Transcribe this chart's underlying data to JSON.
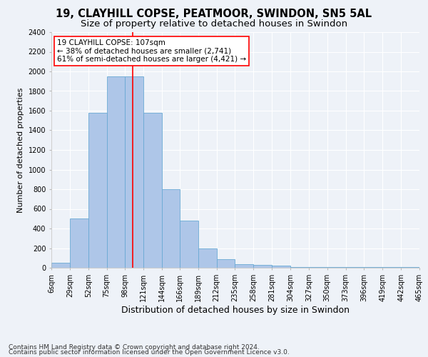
{
  "title1": "19, CLAYHILL COPSE, PEATMOOR, SWINDON, SN5 5AL",
  "title2": "Size of property relative to detached houses in Swindon",
  "xlabel": "Distribution of detached houses by size in Swindon",
  "ylabel": "Number of detached properties",
  "bin_edges": [
    6,
    29,
    52,
    75,
    98,
    121,
    144,
    166,
    189,
    212,
    235,
    258,
    281,
    304,
    327,
    350,
    373,
    396,
    419,
    442,
    465
  ],
  "bar_heights": [
    50,
    500,
    1580,
    1950,
    1950,
    1580,
    800,
    480,
    200,
    90,
    40,
    30,
    20,
    5,
    5,
    5,
    5,
    5,
    5,
    5
  ],
  "bar_color": "#aec6e8",
  "bar_edge_color": "#6aaad4",
  "vline_x": 107,
  "vline_color": "red",
  "vline_lw": 1.2,
  "annotation_title": "19 CLAYHILL COPSE: 107sqm",
  "annotation_line1": "← 38% of detached houses are smaller (2,741)",
  "annotation_line2": "61% of semi-detached houses are larger (4,421) →",
  "annotation_box_color": "white",
  "annotation_box_edge": "red",
  "ylim": [
    0,
    2400
  ],
  "yticks": [
    0,
    200,
    400,
    600,
    800,
    1000,
    1200,
    1400,
    1600,
    1800,
    2000,
    2200,
    2400
  ],
  "footer1": "Contains HM Land Registry data © Crown copyright and database right 2024.",
  "footer2": "Contains public sector information licensed under the Open Government Licence v3.0.",
  "bg_color": "#eef2f8",
  "grid_color": "white",
  "title1_fontsize": 10.5,
  "title2_fontsize": 9.5,
  "xlabel_fontsize": 9,
  "ylabel_fontsize": 8,
  "tick_fontsize": 7,
  "annotation_fontsize": 7.5,
  "footer_fontsize": 6.5
}
